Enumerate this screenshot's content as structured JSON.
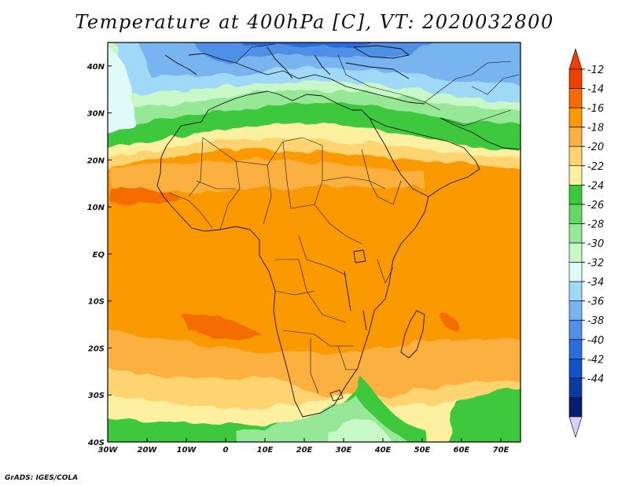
{
  "title": "Temperature at 400hPa [C], VT: 2020032800",
  "footer": "GrADS: IGES/COLA",
  "map": {
    "lon_range": [
      -30,
      75
    ],
    "lat_range": [
      -40,
      45
    ],
    "lon_ticks": [
      {
        "value": -30,
        "label": "30W"
      },
      {
        "value": -20,
        "label": "20W"
      },
      {
        "value": -10,
        "label": "10W"
      },
      {
        "value": 0,
        "label": "0"
      },
      {
        "value": 10,
        "label": "10E"
      },
      {
        "value": 20,
        "label": "20E"
      },
      {
        "value": 30,
        "label": "30E"
      },
      {
        "value": 40,
        "label": "40E"
      },
      {
        "value": 50,
        "label": "50E"
      },
      {
        "value": 60,
        "label": "60E"
      },
      {
        "value": 70,
        "label": "70E"
      }
    ],
    "lat_ticks": [
      {
        "value": 40,
        "label": "40N"
      },
      {
        "value": 30,
        "label": "30N"
      },
      {
        "value": 20,
        "label": "20N"
      },
      {
        "value": 10,
        "label": "10N"
      },
      {
        "value": 0,
        "label": "EQ"
      },
      {
        "value": -10,
        "label": "10S"
      },
      {
        "value": -20,
        "label": "20S"
      },
      {
        "value": -30,
        "label": "30S"
      },
      {
        "value": -40,
        "label": "40S"
      }
    ]
  },
  "colorbar": {
    "labels": [
      "-12",
      "-14",
      "-16",
      "-18",
      "-20",
      "-22",
      "-24",
      "-26",
      "-28",
      "-30",
      "-32",
      "-34",
      "-36",
      "-38",
      "-40",
      "-42",
      "-44"
    ],
    "colors": [
      "#f04000",
      "#f56c00",
      "#fa9900",
      "#fbb040",
      "#fdd470",
      "#fdf0a0",
      "#3cc83c",
      "#64d864",
      "#96e896",
      "#c8f8c8",
      "#e0fafa",
      "#a0d8f8",
      "#78b4f0",
      "#5090e6",
      "#2a6cdc",
      "#1450c8",
      "#0a3ca0",
      "#061e70"
    ],
    "over_color": "#f04000",
    "under_color": "#d8d0fa"
  }
}
